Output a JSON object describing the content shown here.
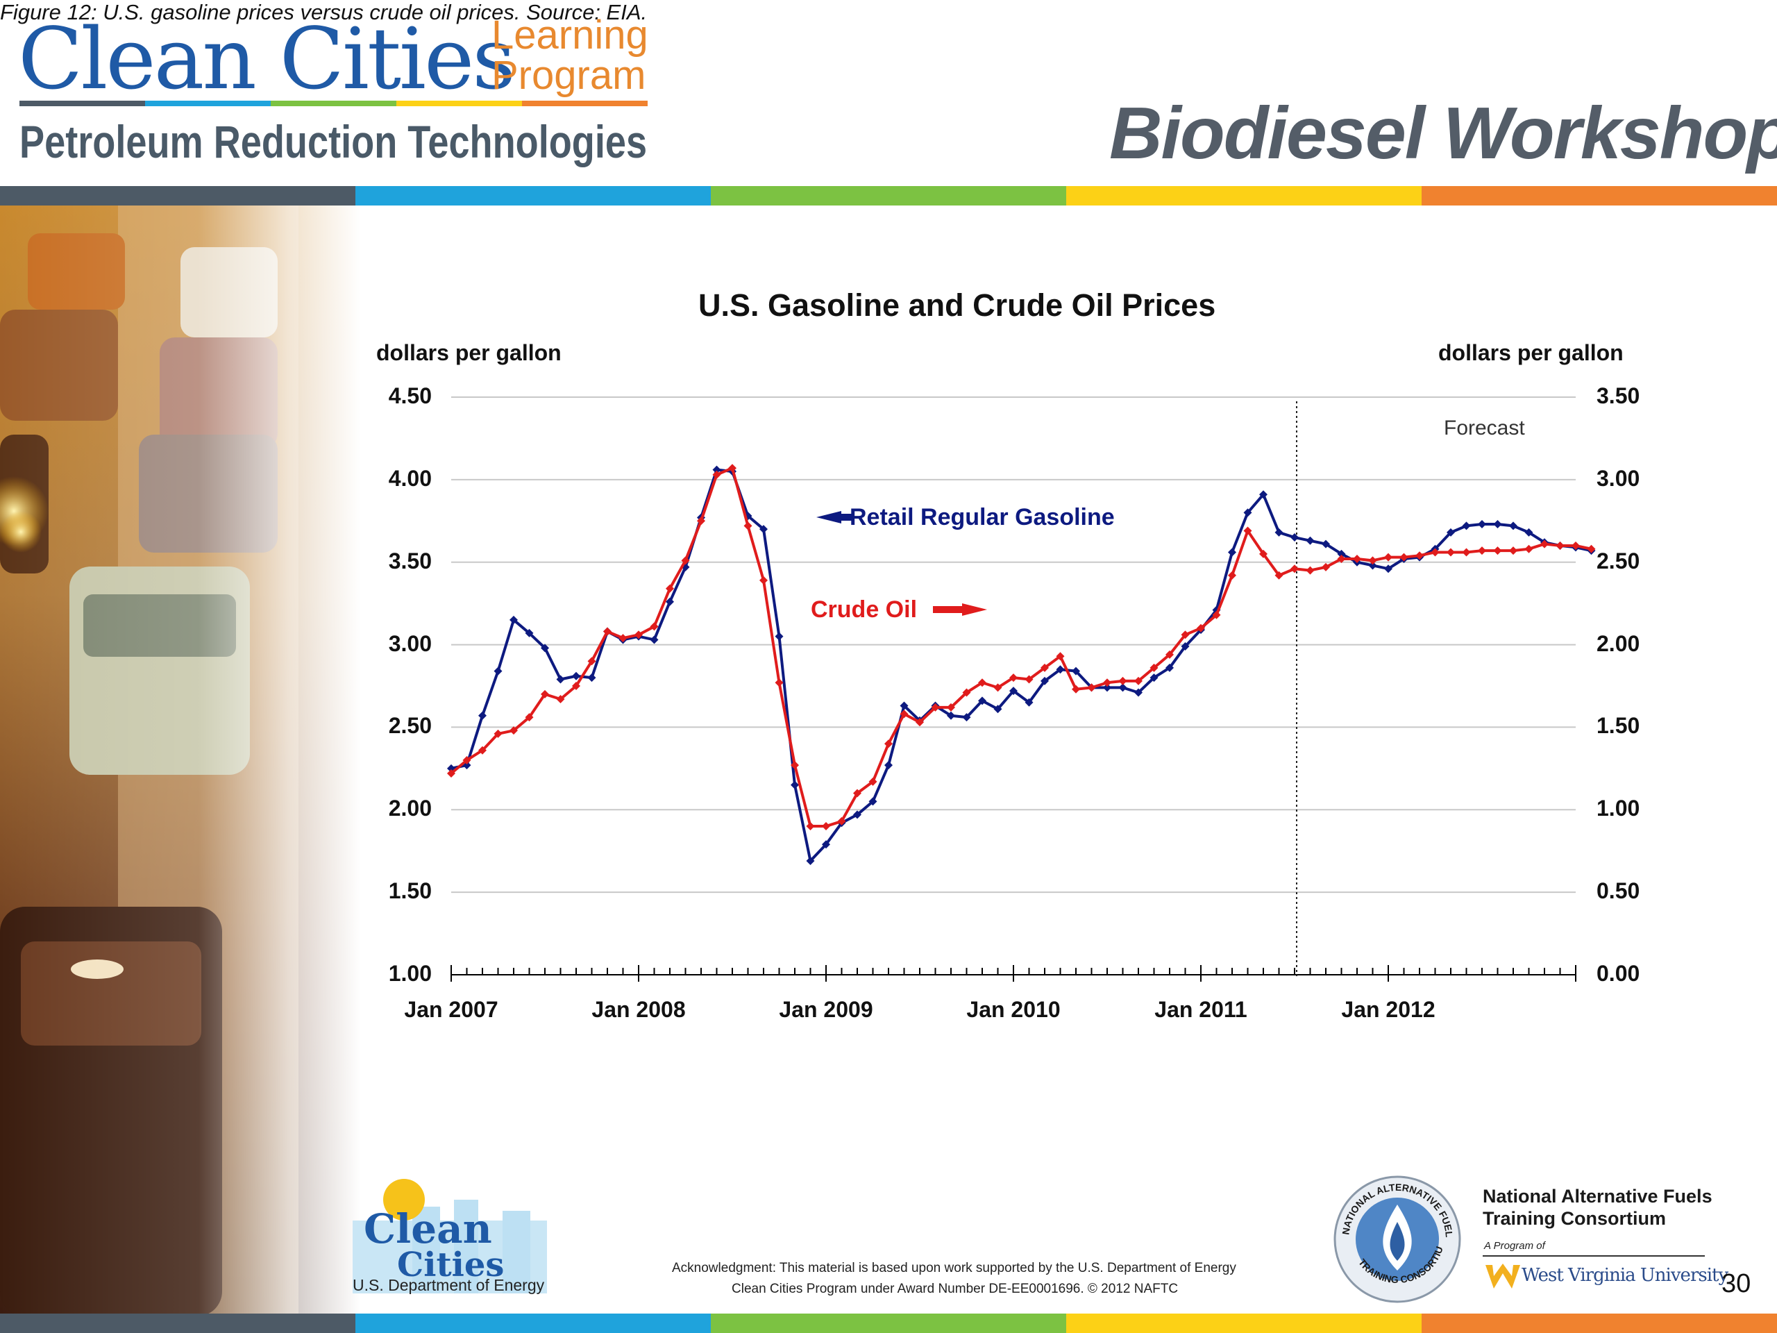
{
  "header": {
    "brand_title": "Clean Cities",
    "brand_learning_line1": "Learning",
    "brand_learning_line2": "Program",
    "brand_subtitle": "Petroleum Reduction Technologies",
    "workshop_title": "Biodiesel Workshop"
  },
  "colors": {
    "stripes": [
      "#4d5a66",
      "#1fa3dc",
      "#7cc242",
      "#fcd116",
      "#f0822f"
    ],
    "gasoline": "#0d1a80",
    "crude": "#e01c1c",
    "brand_blue": "#1f5aa6",
    "brand_orange": "#e8892f"
  },
  "chart_data": {
    "type": "line",
    "title": "U.S. Gasoline and Crude Oil Prices",
    "ylabel_left": "dollars per gallon",
    "ylabel_right": "dollars per gallon",
    "ylim_left": [
      1.0,
      4.5
    ],
    "ylim_right": [
      0.0,
      3.5
    ],
    "yticks_left": [
      "4.50",
      "4.00",
      "3.50",
      "3.00",
      "2.50",
      "2.00",
      "1.50",
      "1.00"
    ],
    "yticks_right": [
      "3.50",
      "3.00",
      "2.50",
      "2.00",
      "1.50",
      "1.00",
      "0.50",
      "0.00"
    ],
    "xlim": [
      "Jan 2007",
      "Dec 2012"
    ],
    "xtick_labels": [
      "Jan 2007",
      "Jan 2008",
      "Jan 2009",
      "Jan 2010",
      "Jan 2011",
      "Jan 2012"
    ],
    "grid": true,
    "forecast_label": "Forecast",
    "forecast_start": "Jun 2011",
    "series": [
      {
        "name": "Retail Regular Gasoline",
        "axis": "left",
        "values": [
          2.25,
          2.27,
          2.57,
          2.84,
          3.15,
          3.07,
          2.98,
          2.79,
          2.81,
          2.8,
          3.08,
          3.03,
          3.05,
          3.03,
          3.26,
          3.47,
          3.77,
          4.06,
          4.05,
          3.78,
          3.7,
          3.05,
          2.15,
          1.69,
          1.79,
          1.92,
          1.97,
          2.05,
          2.27,
          2.63,
          2.54,
          2.63,
          2.57,
          2.56,
          2.66,
          2.61,
          2.72,
          2.65,
          2.78,
          2.85,
          2.84,
          2.74,
          2.74,
          2.74,
          2.71,
          2.8,
          2.86,
          2.99,
          3.09,
          3.21,
          3.56,
          3.8,
          3.91,
          3.68,
          3.65,
          3.63,
          3.61,
          3.55,
          3.5,
          3.48,
          3.46,
          3.52,
          3.53,
          3.58,
          3.68,
          3.72,
          3.73,
          3.73,
          3.72,
          3.68,
          3.62,
          3.6,
          3.59,
          3.57
        ]
      },
      {
        "name": "Crude Oil",
        "axis": "right",
        "values": [
          1.22,
          1.3,
          1.36,
          1.46,
          1.48,
          1.56,
          1.7,
          1.67,
          1.75,
          1.9,
          2.08,
          2.04,
          2.06,
          2.11,
          2.34,
          2.51,
          2.75,
          3.03,
          3.07,
          2.72,
          2.39,
          1.77,
          1.27,
          0.9,
          0.9,
          0.93,
          1.1,
          1.17,
          1.4,
          1.58,
          1.53,
          1.62,
          1.62,
          1.71,
          1.77,
          1.74,
          1.8,
          1.79,
          1.86,
          1.93,
          1.73,
          1.74,
          1.77,
          1.78,
          1.78,
          1.86,
          1.94,
          2.06,
          2.1,
          2.18,
          2.42,
          2.69,
          2.55,
          2.42,
          2.46,
          2.45,
          2.47,
          2.52,
          2.52,
          2.51,
          2.53,
          2.53,
          2.54,
          2.56,
          2.56,
          2.56,
          2.57,
          2.57,
          2.57,
          2.58,
          2.61,
          2.6,
          2.6,
          2.58
        ]
      }
    ],
    "annotations": {
      "gasoline_label": "Retail Regular Gasoline",
      "crude_label": "Crude Oil"
    }
  },
  "caption": "Figure 12: U.S. gasoline prices versus crude oil prices.  Source: EIA.",
  "footer": {
    "cc_logo_line1": "Clean",
    "cc_logo_line2": "Cities",
    "doe_label": "U.S. Department of Energy",
    "ack_line1": "Acknowledgment: This material is based upon work supported by the U.S. Department of Energy",
    "ack_line2": "Clean Cities Program under Award Number DE-EE0001696.  © 2012 NAFTC",
    "naftc_name_line1": "National Alternative Fuels",
    "naftc_name_line2": "Training Consortium",
    "naftc_program": "A Program of",
    "wvu_label": "West Virginia University",
    "seal_text_top": "NATIONAL ALTERNATIVE FUELS",
    "seal_text_bottom": "TRAINING CONSORTIUM",
    "page_number": "30"
  }
}
